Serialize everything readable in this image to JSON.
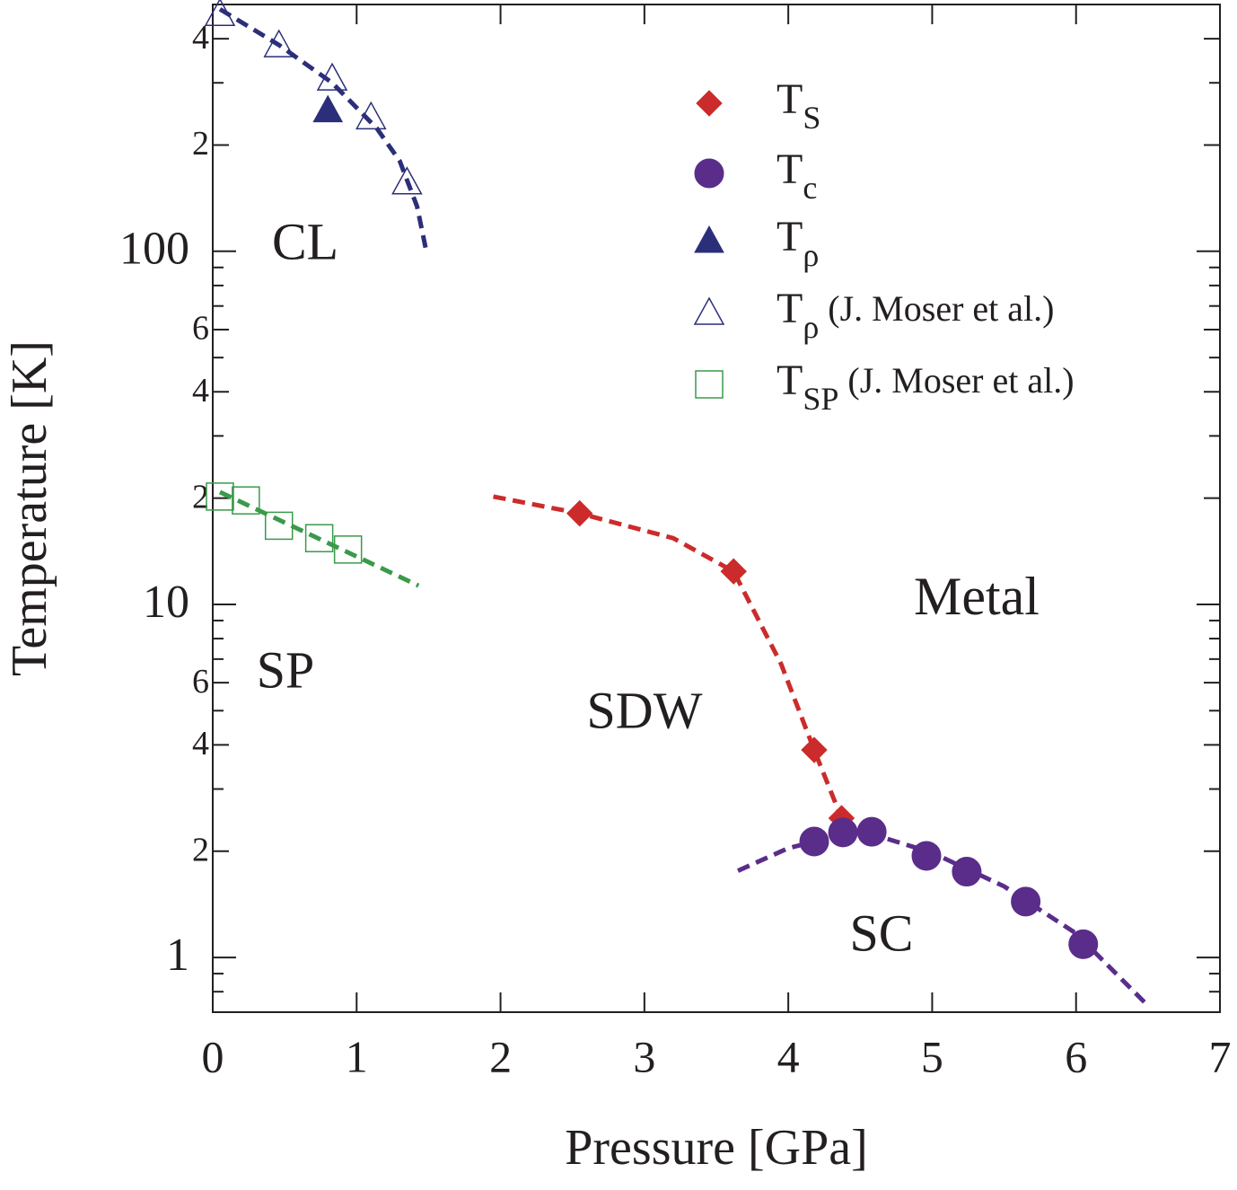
{
  "chart_data": {
    "type": "scatter",
    "x_label": "Pressure [GPa]",
    "y_label": "Temperature [K]",
    "xlim": [
      0,
      7
    ],
    "xticks": [
      0,
      1,
      2,
      3,
      4,
      5,
      6,
      7
    ],
    "ylim": [
      0.7,
      500
    ],
    "yscale": "log",
    "yticks": [
      1,
      {
        "value": 2,
        "label": "2"
      },
      {
        "value": 4,
        "label": "4"
      },
      {
        "value": 6,
        "label": "6"
      },
      10,
      {
        "value": 20,
        "label": "2"
      },
      {
        "value": 40,
        "label": "4"
      },
      {
        "value": 60,
        "label": "6"
      },
      100,
      {
        "value": 200,
        "label": "2"
      },
      {
        "value": 400,
        "label": "4"
      }
    ],
    "yminor": [
      0.8,
      0.9,
      3,
      5,
      7,
      8,
      9,
      30,
      50,
      70,
      80,
      90,
      300
    ],
    "legend": "upper right",
    "series": [
      {
        "name": "T",
        "name_sub": "S",
        "marker": "diamond",
        "filled": true,
        "color": "#cc2b2b",
        "x": [
          2.55,
          3.62,
          4.18,
          4.37
        ],
        "values": [
          18.1,
          12.4,
          3.87,
          2.48
        ]
      },
      {
        "name": "T",
        "name_sub": "c",
        "marker": "circle",
        "filled": true,
        "color": "#5b2d8a",
        "x": [
          4.18,
          4.38,
          4.58,
          4.96,
          5.24,
          5.65,
          6.05
        ],
        "values": [
          2.13,
          2.26,
          2.27,
          1.94,
          1.75,
          1.44,
          1.09
        ]
      },
      {
        "name": "T",
        "name_sub": "ρ",
        "marker": "triangle",
        "filled": true,
        "color": "#2b2f7a",
        "x": [
          0.8
        ],
        "values": [
          251
        ]
      },
      {
        "name": "T",
        "name_sub": "ρ",
        "name_suffix": " (J. Moser et al.)",
        "marker": "triangle",
        "filled": false,
        "color": "#2b2f7a",
        "x": [
          0.05,
          0.46,
          0.83,
          1.1,
          1.35
        ],
        "values": [
          471,
          384,
          309,
          240,
          157
        ]
      },
      {
        "name": "T",
        "name_sub": "SP",
        "name_suffix": " (J. Moser et al.)",
        "marker": "square",
        "filled": false,
        "color": "#3a9a4a",
        "x": [
          0.05,
          0.23,
          0.46,
          0.74,
          0.94
        ],
        "values": [
          20.2,
          19.7,
          16.7,
          15.4,
          14.3
        ]
      }
    ],
    "fit_lines": [
      {
        "color": "#2b2f7a",
        "x": [
          0.05,
          0.46,
          0.83,
          1.14,
          1.3,
          1.42,
          1.48
        ],
        "values": [
          485,
          384,
          300,
          223,
          180,
          134,
          102
        ]
      },
      {
        "color": "#3a9a4a",
        "x": [
          0.05,
          1.43
        ],
        "values": [
          20.8,
          11.3
        ]
      },
      {
        "color": "#cc2b2b",
        "x": [
          1.95,
          2.55,
          3.2,
          3.62,
          3.95,
          4.18,
          4.37,
          4.4
        ],
        "values": [
          20.2,
          18.1,
          15.4,
          12.4,
          6.78,
          3.87,
          2.48,
          2.3
        ]
      },
      {
        "color": "#5b2d8a",
        "x": [
          3.65,
          4.0,
          4.5,
          5.0,
          5.5,
          6.0,
          6.5
        ],
        "values": [
          1.76,
          2.04,
          2.29,
          1.98,
          1.59,
          1.17,
          0.73
        ]
      }
    ],
    "annotations": [
      "CL",
      "SP",
      "SDW",
      "Metal",
      "SC"
    ]
  }
}
